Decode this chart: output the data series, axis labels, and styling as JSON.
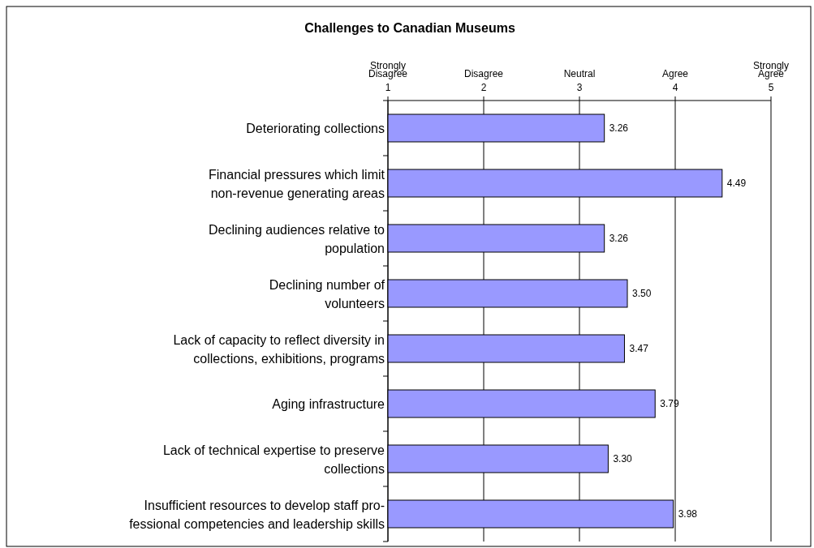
{
  "chart_data": {
    "type": "bar",
    "orientation": "horizontal",
    "title": "Challenges to Canadian Museums",
    "categories": [
      "Deteriorating collections",
      "Financial pressures which limit\nnon-revenue generating areas",
      "Declining audiences relative to\npopulation",
      "Declining number of\nvolunteers",
      "Lack of capacity to reflect diversity in\ncollections, exhibitions, programs",
      "Aging infrastructure",
      "Lack of technical expertise to preserve\ncollections",
      "Insufficient resources to develop staff pro-\nfessional competencies and leadership skills"
    ],
    "values": [
      3.26,
      4.49,
      3.26,
      3.5,
      3.47,
      3.79,
      3.3,
      3.98
    ],
    "value_labels": [
      "3.26",
      "4.49",
      "3.26",
      "3.50",
      "3.47",
      "3.79",
      "3.30",
      "3.98"
    ],
    "color": "#9999ff",
    "xlim": [
      1,
      5
    ],
    "xticks": [
      1,
      2,
      3,
      4,
      5
    ],
    "annotations": [
      "Strongly\nDisagree",
      "Disagree",
      "Neutral",
      "Agree",
      "Strongly\nAgree"
    ],
    "grid": "x"
  }
}
